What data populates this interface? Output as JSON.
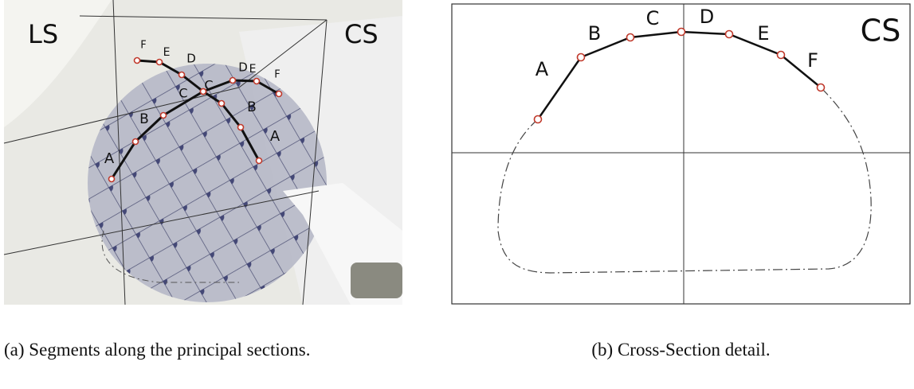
{
  "panel_a": {
    "plane_labels": [
      "LS",
      "CS"
    ],
    "longitudinal_labels": [
      "A",
      "B",
      "C",
      "D",
      "E",
      "F"
    ],
    "cross_labels": [
      "A",
      "B",
      "C",
      "D",
      "E",
      "F"
    ],
    "caption": "(a) Segments along the principal sections."
  },
  "panel_b": {
    "title": "CS",
    "labels": [
      "A",
      "B",
      "C",
      "D",
      "E",
      "F"
    ],
    "caption": "(b) Cross-Section detail."
  }
}
